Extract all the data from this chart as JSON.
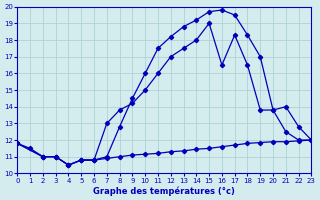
{
  "xlabel": "Graphe des températures (°c)",
  "xlim": [
    0,
    23
  ],
  "ylim": [
    10,
    20
  ],
  "xticks": [
    0,
    1,
    2,
    3,
    4,
    5,
    6,
    7,
    8,
    9,
    10,
    11,
    12,
    13,
    14,
    15,
    16,
    17,
    18,
    19,
    20,
    21,
    22,
    23
  ],
  "yticks": [
    10,
    11,
    12,
    13,
    14,
    15,
    16,
    17,
    18,
    19,
    20
  ],
  "background_color": "#d5ecef",
  "line_color": "#0000bb",
  "grid_color": "#a8cdd0",
  "line1_x": [
    0,
    1,
    2,
    3,
    4,
    5,
    6,
    7,
    8,
    9,
    10,
    11,
    12,
    13,
    14,
    15,
    16,
    17,
    18,
    19,
    20,
    21,
    22,
    23
  ],
  "line1_y": [
    11.8,
    11.5,
    11.0,
    11.0,
    10.5,
    10.8,
    10.8,
    10.9,
    11.0,
    11.1,
    11.15,
    11.2,
    11.3,
    11.35,
    11.45,
    11.5,
    11.6,
    11.7,
    11.8,
    11.85,
    11.9,
    11.9,
    11.95,
    12.0
  ],
  "line2_x": [
    0,
    2,
    3,
    4,
    5,
    6,
    7,
    8,
    9,
    10,
    11,
    12,
    13,
    14,
    15,
    16,
    17,
    18,
    19,
    20,
    21,
    22,
    23
  ],
  "line2_y": [
    11.8,
    11.0,
    11.0,
    10.5,
    10.8,
    10.8,
    13.0,
    13.8,
    14.2,
    15.0,
    16.0,
    17.0,
    17.5,
    18.0,
    19.0,
    16.5,
    18.3,
    16.5,
    13.8,
    13.8,
    14.0,
    12.8,
    12.0
  ],
  "line3_x": [
    0,
    2,
    3,
    4,
    5,
    6,
    7,
    8,
    9,
    10,
    11,
    12,
    13,
    14,
    15,
    16,
    17,
    18,
    19,
    20,
    21,
    22,
    23
  ],
  "line3_y": [
    11.8,
    11.0,
    11.0,
    10.5,
    10.8,
    10.8,
    11.0,
    12.8,
    14.5,
    16.0,
    17.5,
    18.2,
    18.8,
    19.2,
    19.7,
    19.8,
    19.5,
    18.3,
    17.0,
    13.8,
    12.5,
    12.0,
    12.0
  ]
}
